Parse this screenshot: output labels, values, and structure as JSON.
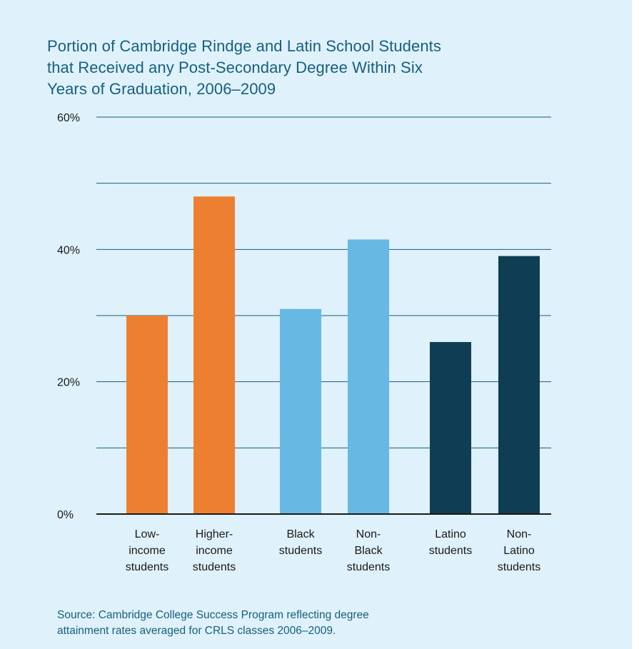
{
  "chart_data": {
    "type": "bar",
    "title": "Portion of Cambridge Rindge and Latin School Students\nthat Received any Post-Secondary Degree Within Six\nYears of Graduation, 2006–2009",
    "source": "Source: Cambridge College Success Program reflecting degree\nattainment rates averaged for CRLS classes 2006–2009.",
    "categories": [
      "Low-\nincome\nstudents",
      "Higher-\nincome\nstudents",
      "Black\nstudents",
      "Non-\nBlack\nstudents",
      "Latino\nstudents",
      "Non-\nLatino\nstudents"
    ],
    "values": [
      30,
      48,
      31,
      41.5,
      26,
      39
    ],
    "bar_colors": [
      "#ed8030",
      "#ed8030",
      "#67b9e4",
      "#67b9e4",
      "#0f3d53",
      "#0f3d53"
    ],
    "ylim": [
      0,
      60
    ],
    "y_ticks": [
      0,
      20,
      40,
      60
    ],
    "y_tick_labels": [
      "0%",
      "20%",
      "40%",
      "60%"
    ],
    "gridlines": [
      10,
      20,
      30,
      40,
      50,
      60
    ],
    "grid": true,
    "xlabel": "",
    "ylabel": ""
  },
  "colors": {
    "background": "#dff1fa",
    "text_accent": "#17607f",
    "grid": "#17607f"
  }
}
